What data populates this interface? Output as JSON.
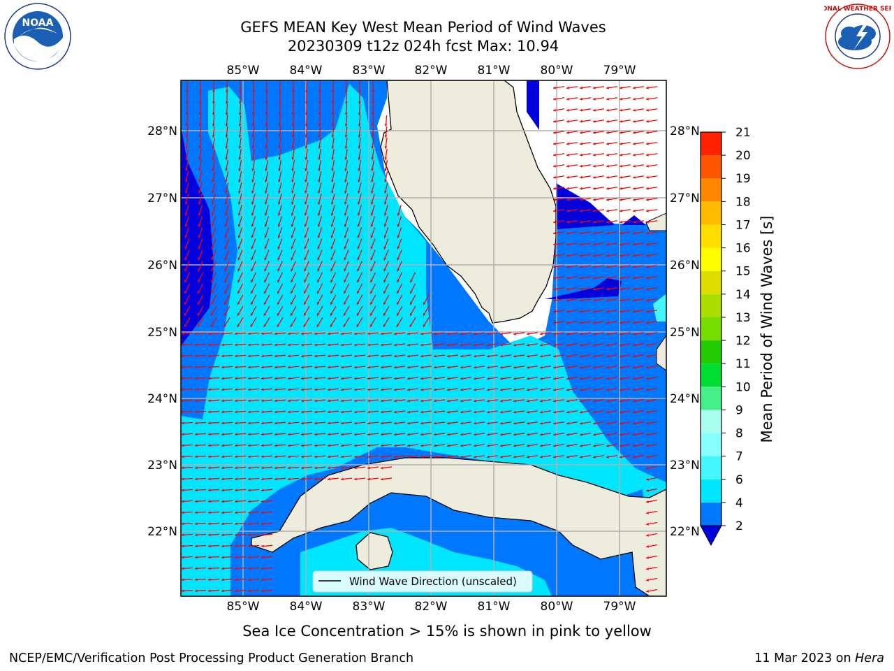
{
  "title": {
    "line1": "GEFS MEAN Key West Mean Period of Wind Waves",
    "line2": "20230309 t12z 024h fcst   Max: 10.94"
  },
  "map": {
    "lon_labels": [
      "85°W",
      "84°W",
      "83°W",
      "82°W",
      "81°W",
      "80°W",
      "79°W"
    ],
    "lat_labels": [
      "28°N",
      "27°N",
      "26°N",
      "25°N",
      "24°N",
      "23°N",
      "22°N"
    ],
    "legend_label": "Wind Wave Direction (unscaled)",
    "land_color": "#eeecdc",
    "arrow_color": "#ff0000",
    "grid_color": "#b0b0b0"
  },
  "colorbar": {
    "label": "Mean Period of Wind Waves [s]",
    "ticks": [
      "2",
      "4",
      "6",
      "7",
      "8",
      "9",
      "10",
      "11",
      "12",
      "13",
      "14",
      "15",
      "16",
      "17",
      "18",
      "19",
      "20",
      "21"
    ],
    "colors": [
      "#0077ff",
      "#00e6ff",
      "#44f7ff",
      "#88ffff",
      "#aaffee",
      "#44ee88",
      "#00dd33",
      "#22cc00",
      "#77dd00",
      "#aadd00",
      "#dddd00",
      "#ffff00",
      "#ffdd00",
      "#ffbb00",
      "#ff8800",
      "#ff5500",
      "#ff2200",
      "#ff0000"
    ],
    "under_color": "#0000dd"
  },
  "logos": {
    "noaa_text": "NOAA",
    "nws_text": "NATIONAL WEATHER SERVICE"
  },
  "caption": "Sea Ice Concentration > 15% is shown in pink to yellow",
  "footer": {
    "left": "NCEP/EMC/Verification Post Processing Product Generation Branch",
    "right_prefix": "11 Mar 2023 on ",
    "right_host": "Hera"
  }
}
